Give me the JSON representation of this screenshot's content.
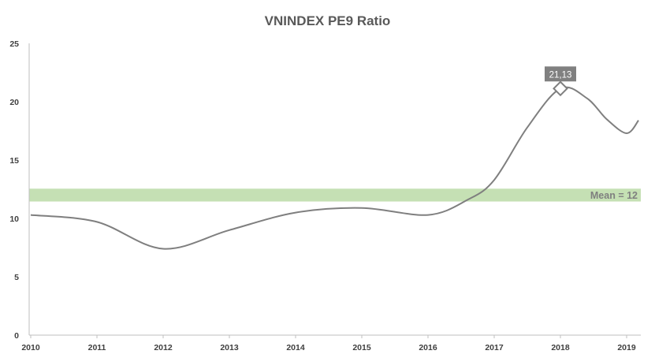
{
  "chart_data": {
    "type": "line",
    "title": "VNINDEX PE9 Ratio",
    "xlabel": "",
    "ylabel": "",
    "x_ticks": [
      "2010",
      "2011",
      "2012",
      "2013",
      "2014",
      "2015",
      "2016",
      "2017",
      "2018",
      "2019"
    ],
    "y_ticks": [
      "0",
      "5",
      "10",
      "15",
      "20",
      "25"
    ],
    "xlim": [
      2010,
      2019.2
    ],
    "ylim": [
      0,
      25
    ],
    "grid": false,
    "series": [
      {
        "color": "#7f7f7f",
        "x": [
          2010,
          2011,
          2012,
          2013,
          2014,
          2015,
          2016,
          2016.6,
          2017,
          2017.5,
          2018,
          2018.4,
          2018.7,
          2019,
          2019.18
        ],
        "y": [
          10.3,
          9.7,
          7.4,
          9.0,
          10.5,
          10.9,
          10.3,
          11.6,
          13.3,
          17.8,
          21.13,
          20.3,
          18.5,
          17.3,
          18.4
        ]
      }
    ],
    "highlight_point": {
      "x": 2018,
      "y": 21.13,
      "label": "21,13",
      "marker_color": "#7f7f7f"
    },
    "mean_band": {
      "value": 12,
      "low": 11.45,
      "high": 12.55,
      "label": "Mean = 12",
      "color": "#c5e0b4"
    }
  }
}
